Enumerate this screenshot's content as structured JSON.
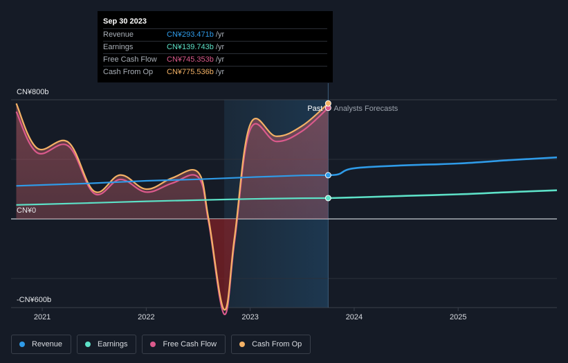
{
  "tooltip": {
    "date": "Sep 30 2023",
    "rows": [
      {
        "label": "Revenue",
        "value": "CN¥293.471b",
        "unit": "/yr",
        "color": "#2f9be8"
      },
      {
        "label": "Earnings",
        "value": "CN¥139.743b",
        "unit": "/yr",
        "color": "#5de1c7"
      },
      {
        "label": "Free Cash Flow",
        "value": "CN¥745.353b",
        "unit": "/yr",
        "color": "#db5a8c"
      },
      {
        "label": "Cash From Op",
        "value": "CN¥775.536b",
        "unit": "/yr",
        "color": "#f4b266"
      }
    ]
  },
  "legend": [
    {
      "label": "Revenue",
      "color": "#2f9be8"
    },
    {
      "label": "Earnings",
      "color": "#5de1c7"
    },
    {
      "label": "Free Cash Flow",
      "color": "#db5a8c"
    },
    {
      "label": "Cash From Op",
      "color": "#f4b266"
    }
  ],
  "chart_data": {
    "type": "line",
    "y_unit": "CN¥ billions",
    "ylim": [
      -600,
      800
    ],
    "y_tick_labels": [
      {
        "value": 800,
        "label": "CN¥800b"
      },
      {
        "value": 0,
        "label": "CN¥0"
      },
      {
        "value": -600,
        "label": "-CN¥600b"
      }
    ],
    "x_range": [
      2020.7,
      2025.95
    ],
    "x_ticks": [
      "2021",
      "2022",
      "2023",
      "2024",
      "2025"
    ],
    "past_label": "Past",
    "forecast_label": "Analysts Forecasts",
    "split_x": 2023.75,
    "highlight_start": 2022.75,
    "series": [
      {
        "name": "Revenue",
        "color": "#2f9be8",
        "past": [
          [
            2020.75,
            222
          ],
          [
            2021.0,
            228
          ],
          [
            2021.5,
            240
          ],
          [
            2022.0,
            256
          ],
          [
            2022.5,
            266
          ],
          [
            2023.0,
            280
          ],
          [
            2023.5,
            292
          ],
          [
            2023.75,
            293.471
          ]
        ],
        "forecast": [
          [
            2023.75,
            293.471
          ],
          [
            2023.85,
            300
          ],
          [
            2024.0,
            340
          ],
          [
            2024.5,
            360
          ],
          [
            2025.0,
            372
          ],
          [
            2025.5,
            395
          ],
          [
            2025.95,
            413
          ]
        ]
      },
      {
        "name": "Earnings",
        "color": "#5de1c7",
        "past": [
          [
            2020.75,
            94
          ],
          [
            2021.0,
            98
          ],
          [
            2021.5,
            108
          ],
          [
            2022.0,
            118
          ],
          [
            2022.5,
            126
          ],
          [
            2023.0,
            134
          ],
          [
            2023.5,
            139
          ],
          [
            2023.75,
            139.743
          ]
        ],
        "forecast": [
          [
            2023.75,
            139.743
          ],
          [
            2024.0,
            144
          ],
          [
            2024.5,
            155
          ],
          [
            2025.0,
            165
          ],
          [
            2025.5,
            180
          ],
          [
            2025.95,
            192
          ]
        ]
      },
      {
        "name": "Free Cash Flow",
        "color": "#db5a8c",
        "past": [
          [
            2020.75,
            720
          ],
          [
            2020.95,
            445
          ],
          [
            2021.25,
            490
          ],
          [
            2021.5,
            170
          ],
          [
            2021.75,
            265
          ],
          [
            2022.0,
            180
          ],
          [
            2022.25,
            240
          ],
          [
            2022.5,
            280
          ],
          [
            2022.6,
            -20
          ],
          [
            2022.75,
            -640
          ],
          [
            2022.85,
            -150
          ],
          [
            2023.0,
            600
          ],
          [
            2023.25,
            520
          ],
          [
            2023.5,
            590
          ],
          [
            2023.75,
            745.353
          ]
        ]
      },
      {
        "name": "Cash From Op",
        "color": "#f4b266",
        "past": [
          [
            2020.75,
            775
          ],
          [
            2020.95,
            475
          ],
          [
            2021.25,
            515
          ],
          [
            2021.5,
            185
          ],
          [
            2021.75,
            295
          ],
          [
            2022.0,
            200
          ],
          [
            2022.25,
            275
          ],
          [
            2022.5,
            312
          ],
          [
            2022.6,
            0
          ],
          [
            2022.75,
            -610
          ],
          [
            2022.85,
            -120
          ],
          [
            2023.0,
            635
          ],
          [
            2023.25,
            555
          ],
          [
            2023.5,
            625
          ],
          [
            2023.75,
            775.536
          ]
        ]
      }
    ]
  }
}
